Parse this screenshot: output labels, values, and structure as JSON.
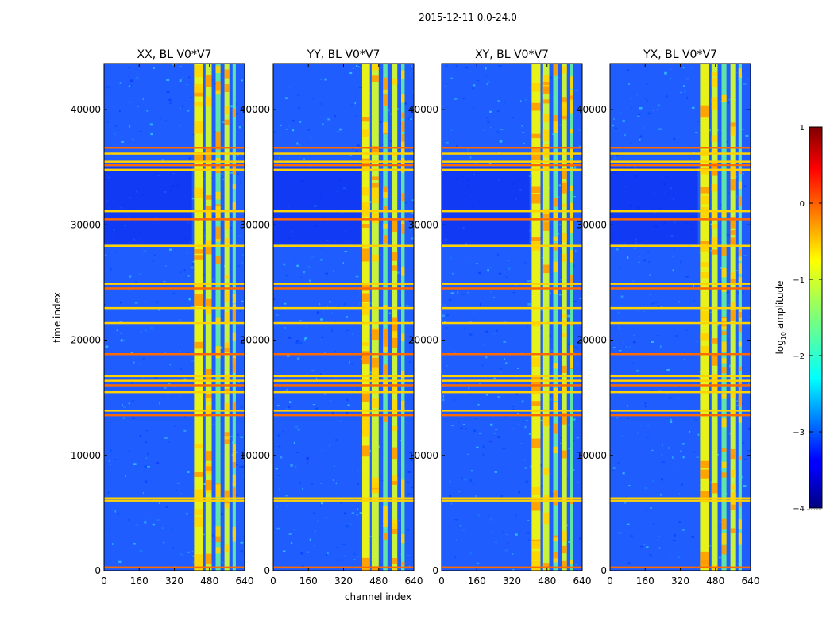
{
  "chart_data": {
    "type": "heatmap",
    "suptitle": "2015-12-11 0.0-24.0",
    "xlabel": "channel index",
    "ylabel": "time index",
    "xlim": [
      0,
      640
    ],
    "ylim": [
      0,
      44000
    ],
    "xticks": [
      0,
      160,
      320,
      480,
      640
    ],
    "yticks": [
      0,
      10000,
      20000,
      30000,
      40000
    ],
    "panels": [
      {
        "title": "XX, BL V0*V7",
        "strong_bands": [
          [
            410,
            450
          ],
          [
            462,
            490
          ],
          [
            508,
            530
          ],
          [
            548,
            570
          ],
          [
            585,
            600
          ]
        ]
      },
      {
        "title": "YY, BL V0*V7",
        "strong_bands": [
          [
            405,
            440
          ],
          [
            448,
            480
          ],
          [
            500,
            520
          ],
          [
            540,
            565
          ],
          [
            582,
            598
          ]
        ]
      },
      {
        "title": "XY, BL V0*V7",
        "strong_bands": [
          [
            410,
            450
          ],
          [
            462,
            490
          ],
          [
            508,
            530
          ],
          [
            548,
            570
          ],
          [
            585,
            600
          ]
        ]
      },
      {
        "title": "YX, BL V0*V7",
        "strong_bands": [
          [
            410,
            450
          ],
          [
            462,
            490
          ],
          [
            508,
            530
          ],
          [
            548,
            570
          ],
          [
            585,
            600
          ]
        ]
      }
    ],
    "rfi_time_rows": [
      300,
      6100,
      6300,
      13500,
      13900,
      15500,
      16100,
      16500,
      16900,
      18800,
      21500,
      22800,
      24500,
      24900,
      28200,
      30500,
      31200,
      34800,
      35200,
      35500,
      36200,
      36700
    ],
    "colorbar": {
      "label": "log10 amplitude",
      "label_prefix": "log",
      "label_sub": "10",
      "label_suffix": " amplitude",
      "range": [
        -4,
        1
      ],
      "ticks": [
        1,
        0,
        -1,
        -2,
        -3,
        -4
      ],
      "tick_labels": [
        "1",
        "0",
        "−1",
        "−2",
        "−3",
        "−4"
      ],
      "colormap": "jet"
    }
  }
}
